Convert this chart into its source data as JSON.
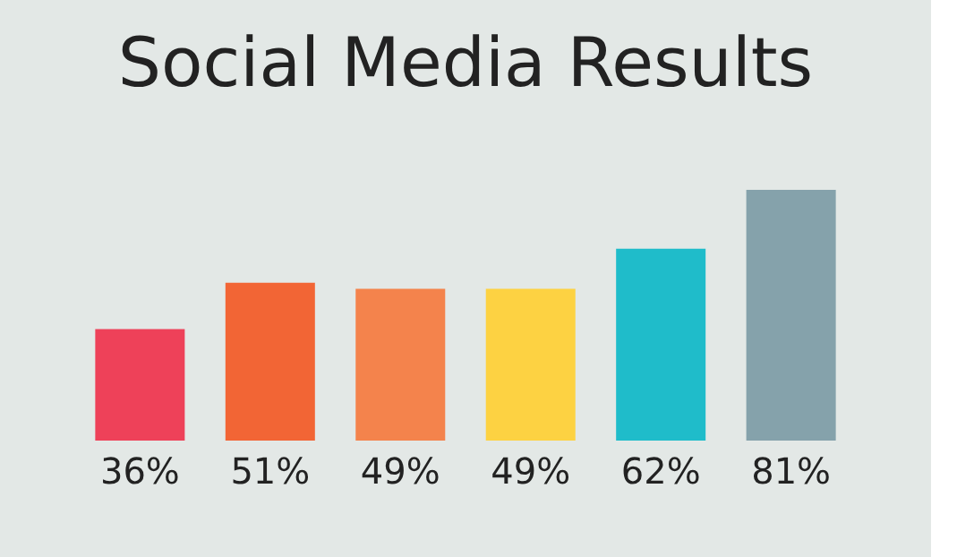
{
  "chart_data": {
    "type": "bar",
    "title": "Social Media Results",
    "categories": [
      null,
      null,
      null,
      null,
      null,
      null
    ],
    "values": [
      36,
      51,
      49,
      49,
      62,
      81
    ],
    "colors": [
      "#ee4159",
      "#f26535",
      "#f4834c",
      "#fdd242",
      "#1fbcca",
      "#85a2ab"
    ],
    "value_labels": [
      "36%",
      "51%",
      "49%",
      "49%",
      "62%",
      "81%"
    ]
  }
}
